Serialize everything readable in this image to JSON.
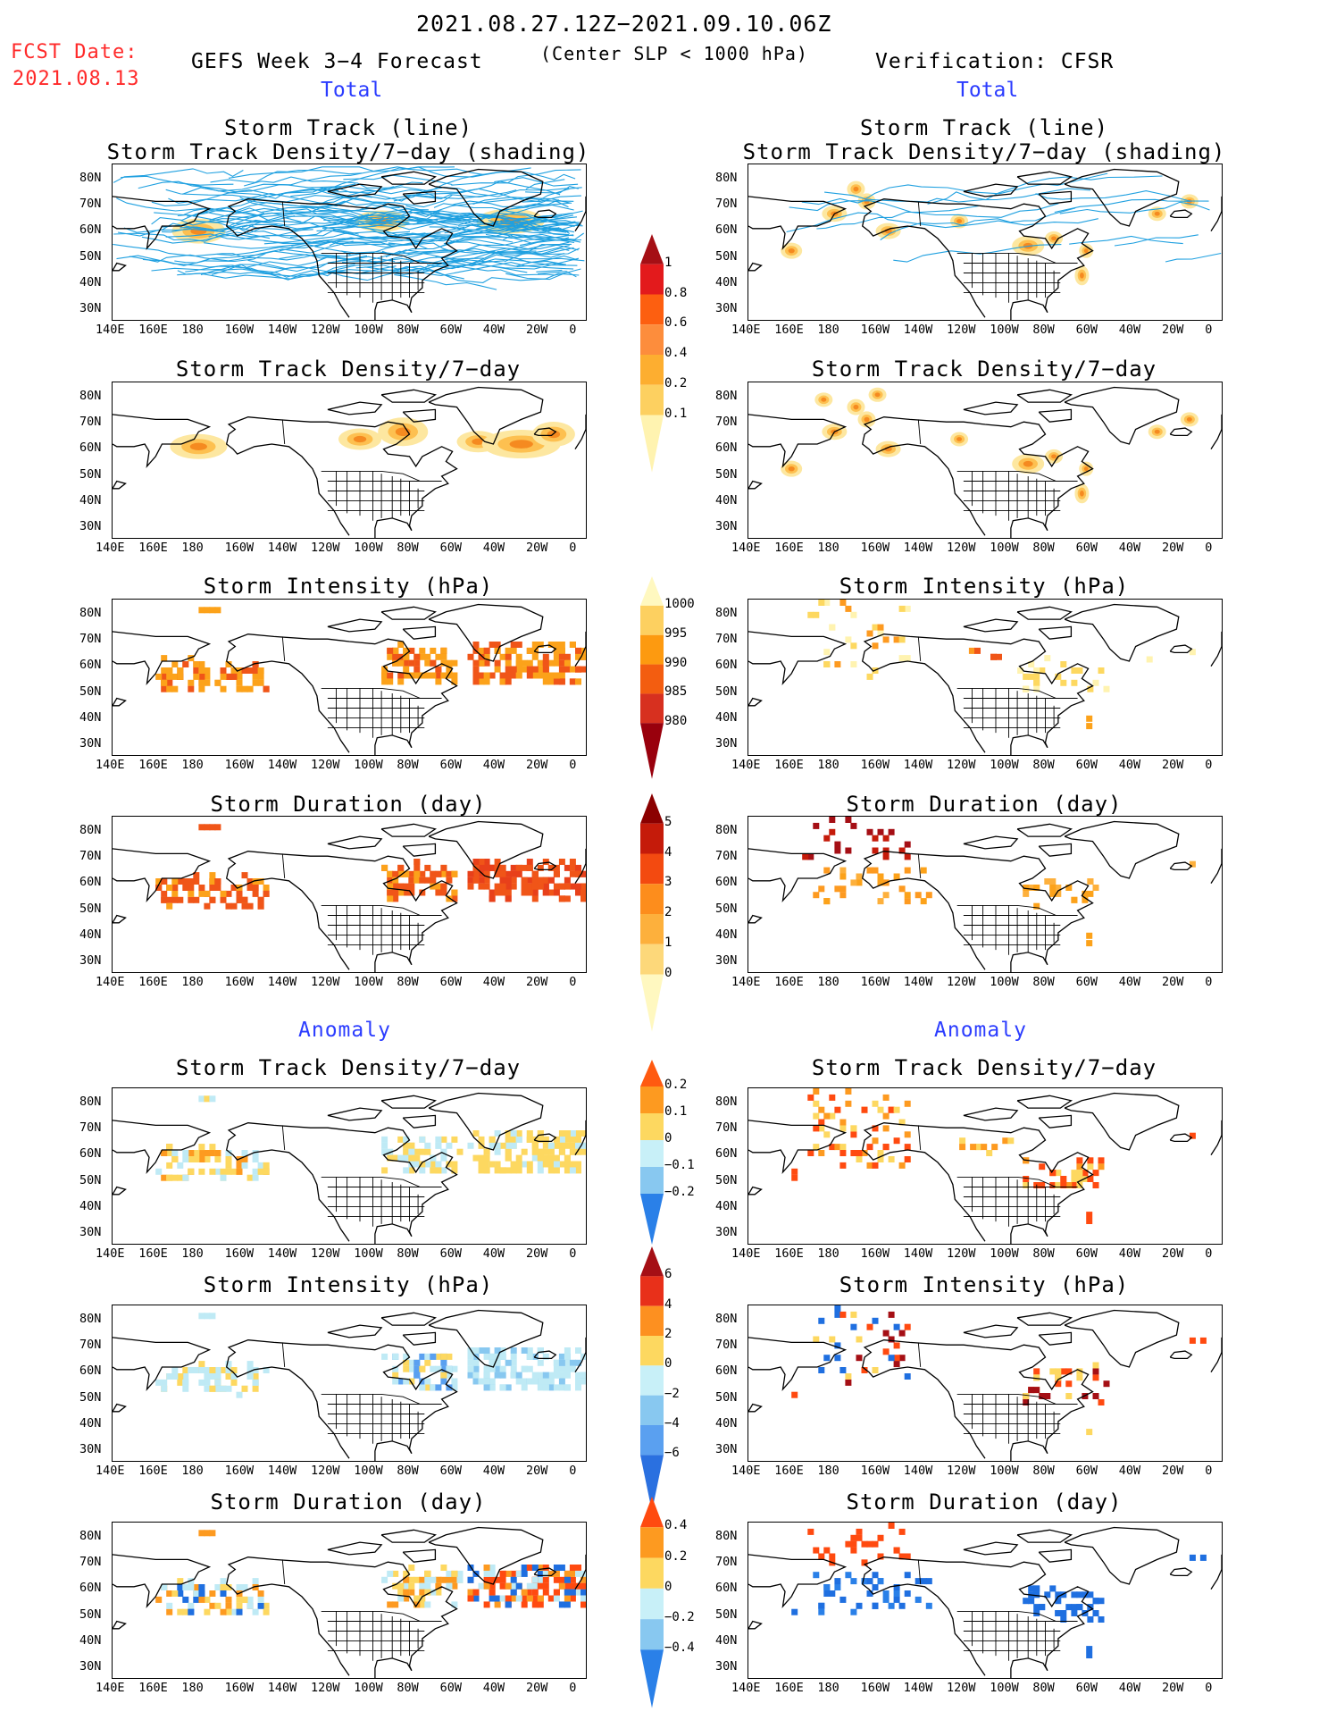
{
  "header": {
    "date_range": "2021.08.27.12Z−2021.09.10.06Z",
    "fcst_label": "FCST Date:",
    "fcst_date": "2021.08.13",
    "forecast_title": "GEFS Week 3−4 Forecast",
    "criterion": "(Center SLP < 1000 hPa)",
    "verification": "Verification: CFSR"
  },
  "sections": {
    "total": "Total",
    "anomaly": "Anomaly"
  },
  "panel_titles": {
    "track1": "Storm Track (line)",
    "track2": "Storm Track Density/7−day (shading)",
    "density": "Storm Track Density/7−day",
    "intensity": "Storm Intensity (hPa)",
    "duration": "Storm Duration (day)"
  },
  "axes": {
    "lat_labels": [
      "80N",
      "70N",
      "60N",
      "50N",
      "40N",
      "30N"
    ],
    "lon_labels": [
      "140E",
      "160E",
      "180",
      "160W",
      "140W",
      "120W",
      "100W",
      "80W",
      "60W",
      "40W",
      "20W",
      "0"
    ]
  },
  "colorbars": {
    "density_total": {
      "labels": [
        "1",
        "0.8",
        "0.6",
        "0.4",
        "0.2",
        "0.1"
      ],
      "colors": [
        "#a50f15",
        "#e31a1c",
        "#fd5f10",
        "#fd8d3c",
        "#fdae30",
        "#fdd060",
        "#fff3b0"
      ]
    },
    "intensity_total": {
      "labels": [
        "1000",
        "995",
        "990",
        "985",
        "980"
      ],
      "colors": [
        "#fff8c0",
        "#fdd060",
        "#fd9a10",
        "#f35d10",
        "#d7301f",
        "#99000d"
      ]
    },
    "duration_total": {
      "labels": [
        "5",
        "4",
        "3",
        "2",
        "1",
        "0"
      ],
      "colors": [
        "#8b0000",
        "#c51b0a",
        "#f34a10",
        "#fd8d1c",
        "#fdb03c",
        "#fdd87a",
        "#fff8c0"
      ]
    },
    "density_anom": {
      "labels": [
        "0.2",
        "0.1",
        "0",
        "−0.1",
        "−0.2"
      ],
      "colors": [
        "#ff5a10",
        "#fd9a20",
        "#fdd860",
        "#c8f0f8",
        "#88c8f0",
        "#2a80e8"
      ]
    },
    "intensity_anom": {
      "labels": [
        "6",
        "4",
        "2",
        "0",
        "−2",
        "−4",
        "−6"
      ],
      "colors": [
        "#a50f15",
        "#e8301a",
        "#fd9020",
        "#fdd860",
        "#c8f0f8",
        "#88c8f0",
        "#5aa0f0",
        "#2a70e0"
      ]
    },
    "duration_anom": {
      "labels": [
        "0.4",
        "0.2",
        "0",
        "−0.2",
        "−0.4"
      ],
      "colors": [
        "#ff4a10",
        "#fd9a20",
        "#fdd860",
        "#c8f0f8",
        "#88c8f0",
        "#2a80e8"
      ]
    }
  },
  "palette": {
    "track_line": "#1fa0e0",
    "coast": "#000000",
    "dens_light": "#fde7a0",
    "dens_mid": "#fdc050",
    "dens_dark": "#f58a20",
    "int_orange": "#fca21a",
    "int_dark": "#f05518",
    "anom_yellow": "#fdd860",
    "anom_orange": "#fd9a20",
    "anom_red": "#ff4a10",
    "anom_lblue": "#bfeaf5",
    "anom_blue": "#1f6fe0"
  }
}
